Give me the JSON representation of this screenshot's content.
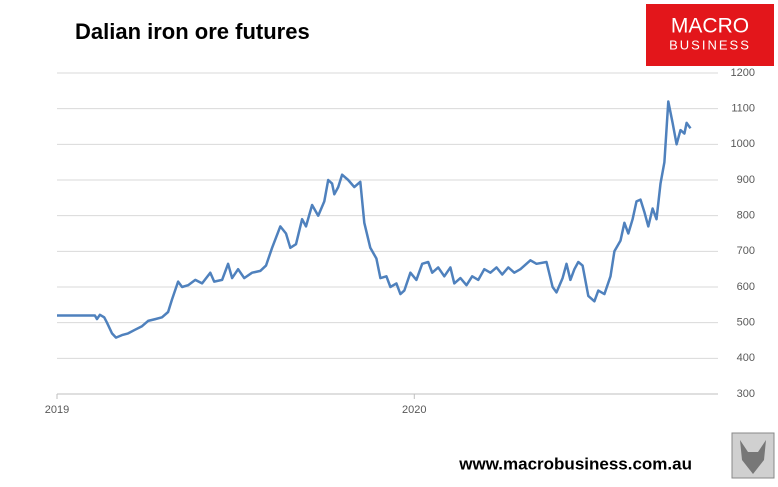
{
  "chart_data": {
    "type": "line",
    "title": "Dalian iron ore futures",
    "x": [
      2019.0,
      2019.106,
      2019.112,
      2019.12,
      2019.132,
      2019.14,
      2019.154,
      2019.165,
      2019.182,
      2019.199,
      2019.218,
      2019.238,
      2019.255,
      2019.275,
      2019.294,
      2019.311,
      2019.322,
      2019.339,
      2019.35,
      2019.367,
      2019.387,
      2019.406,
      2019.429,
      2019.44,
      2019.462,
      2019.479,
      2019.49,
      2019.507,
      2019.524,
      2019.546,
      2019.569,
      2019.585,
      2019.602,
      2019.625,
      2019.641,
      2019.653,
      2019.669,
      2019.686,
      2019.697,
      2019.714,
      2019.731,
      2019.748,
      2019.759,
      2019.77,
      2019.776,
      2019.787,
      2019.798,
      2019.815,
      2019.832,
      2019.849,
      2019.86,
      2019.877,
      2019.894,
      2019.905,
      2019.922,
      2019.933,
      2019.95,
      2019.961,
      2019.972,
      2019.989,
      2020.006,
      2020.022,
      2020.039,
      2020.05,
      2020.067,
      2020.084,
      2020.101,
      2020.112,
      2020.129,
      2020.146,
      2020.162,
      2020.179,
      2020.196,
      2020.213,
      2020.23,
      2020.246,
      2020.263,
      2020.28,
      2020.297,
      2020.325,
      2020.342,
      2020.37,
      2020.387,
      2020.398,
      2020.415,
      2020.426,
      2020.437,
      2020.448,
      2020.459,
      2020.471,
      2020.487,
      2020.504,
      2020.515,
      2020.532,
      2020.549,
      2020.56,
      2020.577,
      2020.588,
      2020.599,
      2020.611,
      2020.622,
      2020.633,
      2020.644,
      2020.655,
      2020.667,
      2020.678,
      2020.689,
      2020.7,
      2020.711,
      2020.723,
      2020.734,
      2020.745,
      2020.756,
      2020.762,
      2020.773
    ],
    "series": [
      {
        "color": "#4f81bd",
        "values": [
          520,
          520,
          510,
          522,
          515,
          500,
          470,
          458,
          465,
          470,
          480,
          490,
          505,
          510,
          515,
          530,
          565,
          615,
          600,
          605,
          620,
          610,
          640,
          615,
          620,
          665,
          625,
          650,
          625,
          640,
          645,
          660,
          710,
          770,
          750,
          710,
          720,
          790,
          770,
          830,
          800,
          840,
          900,
          890,
          860,
          880,
          915,
          900,
          880,
          895,
          780,
          710,
          680,
          625,
          630,
          600,
          610,
          580,
          590,
          640,
          620,
          665,
          670,
          640,
          655,
          630,
          655,
          610,
          625,
          605,
          630,
          620,
          650,
          640,
          655,
          635,
          655,
          640,
          650,
          675,
          665,
          670,
          600,
          585,
          625,
          665,
          620,
          650,
          670,
          660,
          575,
          560,
          590,
          580,
          630,
          700,
          730,
          780,
          750,
          790,
          840,
          845,
          810,
          770,
          820,
          790,
          890,
          950,
          1120,
          1060,
          1000,
          1040,
          1030,
          1060,
          1045
        ]
      }
    ],
    "xlim": [
      2019,
      2020.85
    ],
    "xticks": [
      2019,
      2020
    ],
    "ylim": [
      300,
      1200
    ],
    "yticks": [
      300,
      400,
      500,
      600,
      700,
      800,
      900,
      1000,
      1100,
      1200
    ],
    "grid": true
  },
  "branding": {
    "logo_top": "MACRO",
    "logo_bottom": "BUSINESS",
    "website": "www.macrobusiness.com.au"
  }
}
